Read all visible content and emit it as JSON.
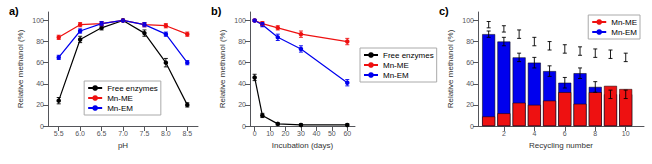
{
  "chart_data": [
    {
      "type": "line",
      "title": "a)",
      "xlabel": "pH",
      "ylabel": "Relative methanol (%)",
      "x": [
        5.5,
        6.0,
        6.5,
        7.0,
        7.5,
        8.0,
        8.5
      ],
      "series": [
        {
          "name": "Free enzymes",
          "color": "#000000",
          "values": [
            24,
            82,
            93,
            100,
            88,
            60,
            20
          ],
          "errors": [
            3,
            3,
            2,
            1,
            3,
            4,
            2
          ]
        },
        {
          "name": "Mn-ME",
          "color": "#ee1111",
          "values": [
            84,
            96,
            97,
            100,
            96,
            95,
            87
          ],
          "errors": [
            2,
            2,
            2,
            1,
            2,
            2,
            2
          ]
        },
        {
          "name": "Mn-EM",
          "color": "#0000ee",
          "values": [
            65,
            90,
            97,
            100,
            96,
            87,
            60
          ],
          "errors": [
            2,
            2,
            2,
            1,
            2,
            2,
            2
          ]
        }
      ],
      "xlim": [
        5.25,
        8.75
      ],
      "ylim": [
        0,
        108
      ],
      "xticks": [
        5.5,
        {
          "value": 6,
          "label": "6.0"
        },
        6.5,
        {
          "value": 7,
          "label": "7.0"
        },
        7.5,
        {
          "value": 8,
          "label": "8.0"
        },
        8.5
      ],
      "yticks": [
        0,
        20,
        40,
        60,
        80,
        100
      ],
      "marker": "circle",
      "legend": "lower center",
      "grid": false
    },
    {
      "type": "line",
      "title": "b)",
      "xlabel": "Incubation (days)",
      "ylabel": "Relative methanol (%)",
      "x": [
        0,
        5,
        15,
        30,
        60
      ],
      "series": [
        {
          "name": "Free enzymes",
          "color": "#000000",
          "values": [
            46,
            10,
            2,
            1,
            1
          ],
          "errors": [
            3,
            2,
            1,
            1,
            1
          ]
        },
        {
          "name": "Mn-ME",
          "color": "#ee1111",
          "values": [
            100,
            97,
            93,
            87,
            80
          ],
          "errors": [
            1,
            2,
            2,
            3,
            3
          ]
        },
        {
          "name": "Mn-EM",
          "color": "#0000ee",
          "values": [
            100,
            96,
            84,
            73,
            41
          ],
          "errors": [
            1,
            2,
            3,
            3,
            3
          ]
        }
      ],
      "xlim": [
        -3,
        65
      ],
      "ylim": [
        0,
        108
      ],
      "xticks": [
        0,
        10,
        20,
        30,
        40,
        50,
        60
      ],
      "yticks": [
        0,
        20,
        40,
        60,
        80,
        100
      ],
      "marker": "circle",
      "legend": "center right",
      "grid": false
    },
    {
      "type": "bar",
      "title": "c)",
      "xlabel": "Recycling number",
      "ylabel": "Relative methanol (%)",
      "x": [
        1,
        2,
        3,
        4,
        5,
        6,
        7,
        8,
        9,
        10
      ],
      "series": [
        {
          "name": "Mn-EM",
          "color": "#0000ee",
          "values": [
            87,
            80,
            65,
            60,
            52,
            41,
            50,
            37,
            30,
            30
          ],
          "errors": [
            3,
            4,
            4,
            5,
            5,
            5,
            5,
            5,
            4,
            4
          ]
        },
        {
          "name": "Mn-ME",
          "color": "#ee1111",
          "values": [
            9,
            12,
            22,
            20,
            24,
            32,
            21,
            32,
            38,
            35
          ],
          "errors": [
            3,
            3,
            4,
            4,
            4,
            4,
            4,
            4,
            4,
            4
          ]
        }
      ],
      "stacked": true,
      "xlim": [
        0.3,
        11.2
      ],
      "ylim": [
        0,
        108
      ],
      "xticks": [
        2,
        4,
        6,
        8,
        10
      ],
      "yticks": [
        0,
        20,
        40,
        60,
        80,
        100
      ],
      "legend": "upper right",
      "grid": false
    }
  ]
}
